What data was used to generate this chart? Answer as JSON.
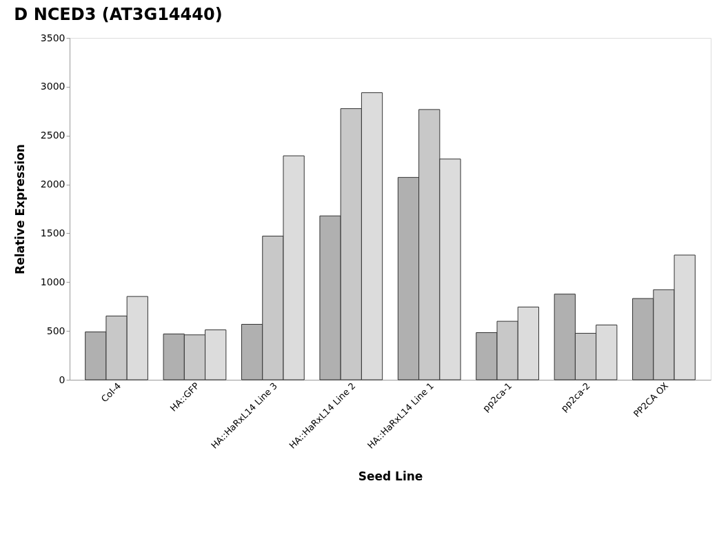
{
  "chart_data": {
    "type": "bar",
    "title": "D   NCED3 (AT3G14440)",
    "xlabel": "Seed Line",
    "ylabel": "Relative Expression",
    "categories": [
      "Col-4",
      "HA::GFP",
      "HA::HaRxL14 Line 3",
      "HA::HaRxL14 Line 2",
      "HA::HaRxL14 Line 1",
      "pp2ca-1",
      "pp2ca-2",
      "PP2CA OX"
    ],
    "series": [
      {
        "color": "#b0b0b0",
        "values": [
          490,
          469,
          568,
          1678,
          2072,
          483,
          877,
          832
        ]
      },
      {
        "color": "#c8c8c8",
        "values": [
          653,
          460,
          1471,
          2776,
          2767,
          599,
          476,
          922
        ]
      },
      {
        "color": "#dcdcdc",
        "values": [
          853,
          511,
          2293,
          2939,
          2260,
          745,
          561,
          1277
        ]
      }
    ],
    "ylim": [
      0,
      3500
    ],
    "yticks": [
      0,
      500,
      1000,
      1500,
      2000,
      2500,
      3000,
      3500
    ],
    "grid": false,
    "legend": false
  }
}
